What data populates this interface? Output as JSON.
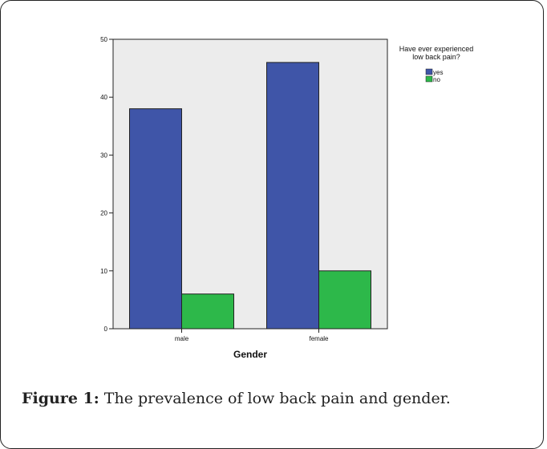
{
  "chart_data": {
    "type": "bar",
    "categories": [
      "male",
      "female"
    ],
    "series": [
      {
        "name": "yes",
        "values": [
          38,
          46
        ],
        "color": "#3f55a8"
      },
      {
        "name": "no",
        "values": [
          6,
          10
        ],
        "color": "#2db84a"
      }
    ],
    "xlabel": "Gender",
    "ylabel": "",
    "ylim": [
      0,
      50
    ],
    "yticks": [
      0,
      10,
      20,
      30,
      40,
      50
    ],
    "legend_title_lines": [
      "Have ever experienced",
      "low back pain?"
    ],
    "legend_position": "top-right",
    "plot_background": "#ececec",
    "grid": false
  },
  "caption": {
    "label": "Figure 1:",
    "text": " The prevalence of low back pain and gender."
  }
}
